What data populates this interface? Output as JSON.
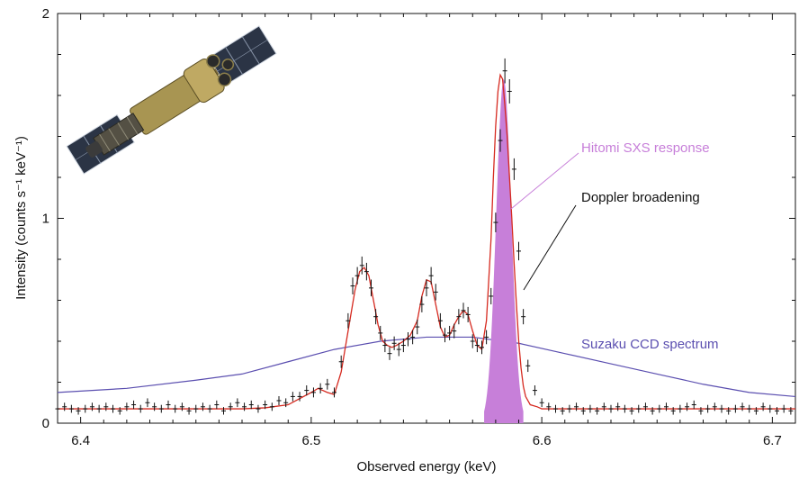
{
  "chart_data": {
    "type": "line",
    "xlabel": "Observed energy (keV)",
    "ylabel": "Intensity (counts s⁻¹ keV⁻¹)",
    "xlim": [
      6.39,
      6.71
    ],
    "ylim": [
      0,
      2
    ],
    "x_ticks": [
      6.4,
      6.5,
      6.6,
      6.7
    ],
    "x_tick_labels": [
      "6.4",
      "6.5",
      "6.6",
      "6.7"
    ],
    "y_ticks": [
      0,
      1,
      2
    ],
    "y_tick_labels": [
      "0",
      "1",
      "2"
    ],
    "grid": false,
    "colors": {
      "data_points": "#111111",
      "model": "#d62a20",
      "suzaku": "#5b4fb0",
      "hitomi": "#c77fd9",
      "axis": "#111111"
    },
    "annotations": [
      {
        "text": "Hitomi SXS response",
        "color": "#c77fd9"
      },
      {
        "text": "Doppler broadening",
        "color": "#111111"
      },
      {
        "text": "Suzaku CCD spectrum",
        "color": "#5b4fb0"
      }
    ],
    "inset_image": "hitomi-satellite",
    "series": [
      {
        "kind": "model",
        "x": [
          6.39,
          6.4,
          6.41,
          6.42,
          6.43,
          6.44,
          6.45,
          6.46,
          6.47,
          6.48,
          6.49,
          6.495,
          6.5,
          6.503,
          6.507,
          6.51,
          6.513,
          6.516,
          6.519,
          6.521,
          6.523,
          6.525,
          6.527,
          6.529,
          6.531,
          6.533,
          6.535,
          6.537,
          6.54,
          6.543,
          6.546,
          6.548,
          6.55,
          6.552,
          6.554,
          6.556,
          6.558,
          6.56,
          6.562,
          6.564,
          6.566,
          6.568,
          6.57,
          6.572,
          6.574,
          6.576,
          6.578,
          6.579,
          6.58,
          6.581,
          6.582,
          6.583,
          6.584,
          6.585,
          6.586,
          6.587,
          6.588,
          6.589,
          6.59,
          6.591,
          6.592,
          6.593,
          6.595,
          6.598,
          6.6,
          6.605,
          6.61,
          6.62,
          6.64,
          6.66,
          6.68,
          6.7,
          6.71
        ],
        "y": [
          0.07,
          0.07,
          0.07,
          0.07,
          0.07,
          0.07,
          0.07,
          0.07,
          0.07,
          0.075,
          0.09,
          0.12,
          0.15,
          0.17,
          0.15,
          0.14,
          0.25,
          0.45,
          0.65,
          0.74,
          0.76,
          0.72,
          0.6,
          0.48,
          0.4,
          0.38,
          0.37,
          0.38,
          0.4,
          0.43,
          0.5,
          0.62,
          0.7,
          0.69,
          0.58,
          0.47,
          0.42,
          0.43,
          0.48,
          0.52,
          0.55,
          0.53,
          0.45,
          0.38,
          0.36,
          0.5,
          0.9,
          1.2,
          1.45,
          1.62,
          1.7,
          1.68,
          1.55,
          1.4,
          1.2,
          1.0,
          0.78,
          0.58,
          0.4,
          0.27,
          0.18,
          0.13,
          0.09,
          0.08,
          0.07,
          0.07,
          0.07,
          0.07,
          0.07,
          0.07,
          0.07,
          0.07,
          0.07
        ]
      },
      {
        "kind": "suzaku",
        "x": [
          6.39,
          6.42,
          6.45,
          6.47,
          6.49,
          6.51,
          6.53,
          6.55,
          6.57,
          6.59,
          6.61,
          6.63,
          6.65,
          6.67,
          6.69,
          6.71
        ],
        "y": [
          0.15,
          0.17,
          0.21,
          0.24,
          0.3,
          0.36,
          0.4,
          0.42,
          0.42,
          0.39,
          0.34,
          0.29,
          0.24,
          0.19,
          0.15,
          0.13
        ]
      },
      {
        "kind": "hitomi-response",
        "center": 6.5835,
        "peak": 1.68,
        "half_width": 0.0085
      },
      {
        "kind": "data",
        "x": [
          6.39,
          6.393,
          6.396,
          6.399,
          6.402,
          6.405,
          6.408,
          6.411,
          6.414,
          6.417,
          6.42,
          6.423,
          6.426,
          6.429,
          6.432,
          6.435,
          6.438,
          6.441,
          6.444,
          6.447,
          6.45,
          6.453,
          6.456,
          6.459,
          6.462,
          6.465,
          6.468,
          6.471,
          6.474,
          6.477,
          6.48,
          6.483,
          6.486,
          6.489,
          6.492,
          6.495,
          6.498,
          6.501,
          6.504,
          6.507,
          6.51,
          6.513,
          6.516,
          6.518,
          6.52,
          6.522,
          6.524,
          6.526,
          6.528,
          6.53,
          6.532,
          6.534,
          6.536,
          6.538,
          6.54,
          6.542,
          6.544,
          6.546,
          6.548,
          6.55,
          6.552,
          6.554,
          6.556,
          6.558,
          6.56,
          6.562,
          6.564,
          6.566,
          6.568,
          6.57,
          6.572,
          6.574,
          6.576,
          6.578,
          6.58,
          6.582,
          6.584,
          6.586,
          6.588,
          6.59,
          6.592,
          6.594,
          6.597,
          6.6,
          6.603,
          6.606,
          6.609,
          6.612,
          6.615,
          6.618,
          6.621,
          6.624,
          6.627,
          6.63,
          6.633,
          6.636,
          6.639,
          6.642,
          6.645,
          6.648,
          6.651,
          6.654,
          6.657,
          6.66,
          6.663,
          6.666,
          6.669,
          6.672,
          6.675,
          6.678,
          6.681,
          6.684,
          6.687,
          6.69,
          6.693,
          6.696,
          6.699,
          6.702,
          6.705,
          6.708
        ],
        "y": [
          0.07,
          0.08,
          0.07,
          0.06,
          0.07,
          0.08,
          0.07,
          0.08,
          0.07,
          0.06,
          0.08,
          0.09,
          0.07,
          0.1,
          0.08,
          0.07,
          0.09,
          0.07,
          0.08,
          0.06,
          0.07,
          0.08,
          0.07,
          0.09,
          0.06,
          0.08,
          0.1,
          0.08,
          0.09,
          0.07,
          0.09,
          0.08,
          0.11,
          0.1,
          0.13,
          0.13,
          0.16,
          0.15,
          0.17,
          0.19,
          0.15,
          0.3,
          0.5,
          0.67,
          0.72,
          0.77,
          0.74,
          0.66,
          0.52,
          0.44,
          0.38,
          0.34,
          0.39,
          0.36,
          0.38,
          0.41,
          0.42,
          0.47,
          0.58,
          0.66,
          0.72,
          0.64,
          0.5,
          0.43,
          0.44,
          0.45,
          0.52,
          0.55,
          0.53,
          0.4,
          0.38,
          0.37,
          0.42,
          0.62,
          0.98,
          1.38,
          1.72,
          1.62,
          1.24,
          0.84,
          0.52,
          0.28,
          0.16,
          0.1,
          0.08,
          0.07,
          0.06,
          0.07,
          0.08,
          0.06,
          0.07,
          0.06,
          0.08,
          0.07,
          0.08,
          0.07,
          0.06,
          0.07,
          0.08,
          0.06,
          0.07,
          0.08,
          0.06,
          0.07,
          0.08,
          0.09,
          0.06,
          0.07,
          0.08,
          0.07,
          0.06,
          0.07,
          0.08,
          0.07,
          0.06,
          0.08,
          0.07,
          0.06,
          0.07,
          0.06
        ]
      }
    ]
  }
}
